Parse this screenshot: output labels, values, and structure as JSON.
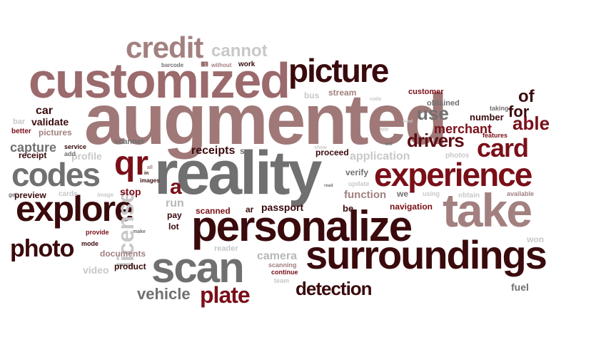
{
  "palette": {
    "maroon": "#5e0b12",
    "brown": "#3a0a0c",
    "dark": "#2a0408",
    "red": "#7a0f18",
    "rose": "#9b6a6c",
    "mauve": "#a38080",
    "gray": "#707070",
    "lightgray": "#b8b8b8",
    "silver": "#c8c8c8"
  },
  "words": [
    {
      "text": "augmented",
      "color": "#a07878"
    },
    {
      "text": "reality",
      "color": "#707070"
    },
    {
      "text": "customized",
      "color": "#9b6a6c"
    },
    {
      "text": "personalize",
      "color": "#3a0a0c"
    },
    {
      "text": "surroundings",
      "color": "#3a0a0c"
    },
    {
      "text": "take",
      "color": "#a38080"
    },
    {
      "text": "scan",
      "color": "#707070"
    },
    {
      "text": "explore",
      "color": "#3a0a0c"
    },
    {
      "text": "experience",
      "color": "#7a0f18"
    },
    {
      "text": "picture",
      "color": "#3a0a0c"
    },
    {
      "text": "credit",
      "color": "#a38080"
    },
    {
      "text": "codes",
      "color": "#707070"
    },
    {
      "text": "qr",
      "color": "#7a0f18"
    },
    {
      "text": "card",
      "color": "#7a0f18"
    },
    {
      "text": "photo",
      "color": "#3a0a0c"
    },
    {
      "text": "license",
      "color": "#c8c8c8"
    },
    {
      "text": "plate",
      "color": "#7a0f18"
    },
    {
      "text": "vehicle",
      "color": "#707070"
    },
    {
      "text": "detection",
      "color": "#3a0a0c"
    },
    {
      "text": "drivers",
      "color": "#5e0b12"
    },
    {
      "text": "able",
      "color": "#7a0f18"
    },
    {
      "text": "use",
      "color": "#707070"
    },
    {
      "text": "cannot",
      "color": "#c8c8c8"
    },
    {
      "text": "merchant",
      "color": "#7a0f18"
    },
    {
      "text": "of",
      "color": "#3a0a0c"
    },
    {
      "text": "for",
      "color": "#3a0a0c"
    },
    {
      "text": "a",
      "color": "#7a0f18"
    },
    {
      "text": "capture",
      "color": "#707070"
    },
    {
      "text": "receipts",
      "color": "#3a0a0c"
    },
    {
      "text": "passport",
      "color": "#3a0a0c"
    },
    {
      "text": "application",
      "color": "#c8c8c8"
    },
    {
      "text": "function",
      "color": "#a38080"
    },
    {
      "text": "navigation",
      "color": "#7a0f18"
    },
    {
      "text": "camera",
      "color": "#b8b8b8"
    },
    {
      "text": "video",
      "color": "#c8c8c8"
    },
    {
      "text": "car",
      "color": "#3a0a0c"
    },
    {
      "text": "validate",
      "color": "#3a0a0c"
    },
    {
      "text": "pictures",
      "color": "#a38080"
    },
    {
      "text": "receipt",
      "color": "#3a0a0c"
    },
    {
      "text": "profile",
      "color": "#c8c8c8"
    },
    {
      "text": "preview",
      "color": "#3a0a0c"
    },
    {
      "text": "stop",
      "color": "#7a0f18"
    },
    {
      "text": "run",
      "color": "#b8b8b8"
    },
    {
      "text": "pay",
      "color": "#3a0a0c"
    },
    {
      "text": "lot",
      "color": "#3a0a0c"
    },
    {
      "text": "scanned",
      "color": "#7a0f18"
    },
    {
      "text": "ar",
      "color": "#3a0a0c"
    },
    {
      "text": "be",
      "color": "#3a0a0c"
    },
    {
      "text": "we",
      "color": "#707070"
    },
    {
      "text": "obtained",
      "color": "#707070"
    },
    {
      "text": "number",
      "color": "#3a0a0c"
    },
    {
      "text": "customer",
      "color": "#7a0f18"
    },
    {
      "text": "stream",
      "color": "#a38080"
    },
    {
      "text": "bus",
      "color": "#c8c8c8"
    },
    {
      "text": "proceed",
      "color": "#3a0a0c"
    },
    {
      "text": "verify",
      "color": "#707070"
    },
    {
      "text": "documents",
      "color": "#a38080"
    },
    {
      "text": "product",
      "color": "#3a0a0c"
    },
    {
      "text": "reader",
      "color": "#c8c8c8"
    },
    {
      "text": "scanning",
      "color": "#a38080"
    },
    {
      "text": "continue",
      "color": "#7a0f18"
    },
    {
      "text": "team",
      "color": "#c8c8c8"
    },
    {
      "text": "fuel",
      "color": "#707070"
    },
    {
      "text": "won",
      "color": "#c8c8c8"
    },
    {
      "text": "photos",
      "color": "#c8c8c8"
    },
    {
      "text": "features",
      "color": "#7a0f18"
    },
    {
      "text": "taking",
      "color": "#707070"
    },
    {
      "text": "obtain",
      "color": "#c8c8c8"
    },
    {
      "text": "available",
      "color": "#a38080"
    },
    {
      "text": "using",
      "color": "#c8c8c8"
    },
    {
      "text": "scanner",
      "color": "#707070"
    },
    {
      "text": "so",
      "color": "#707070"
    },
    {
      "text": "service",
      "color": "#3a0a0c"
    },
    {
      "text": "add",
      "color": "#707070"
    },
    {
      "text": "better",
      "color": "#7a0f18"
    },
    {
      "text": "bar",
      "color": "#c8c8c8"
    },
    {
      "text": "get",
      "color": "#707070"
    },
    {
      "text": "cards",
      "color": "#c8c8c8"
    },
    {
      "text": "image",
      "color": "#c8c8c8"
    },
    {
      "text": "images",
      "color": "#3a0a0c"
    },
    {
      "text": "provide",
      "color": "#7a0f18"
    },
    {
      "text": "mode",
      "color": "#3a0a0c"
    },
    {
      "text": "make",
      "color": "#707070"
    },
    {
      "text": "barcode",
      "color": "#707070"
    },
    {
      "text": "without",
      "color": "#a38080"
    },
    {
      "text": "work",
      "color": "#3a0a0c"
    },
    {
      "text": "show",
      "color": "#c8c8c8"
    },
    {
      "text": "update",
      "color": "#c8c8c8"
    },
    {
      "text": "code",
      "color": "#c8c8c8"
    },
    {
      "text": "read",
      "color": "#707070"
    },
    {
      "text": "send",
      "color": "#c8c8c8"
    },
    {
      "text": "app",
      "color": "#c8c8c8"
    },
    {
      "text": "all",
      "color": "#a38080"
    },
    {
      "text": "in",
      "color": "#3a0a0c"
    },
    {
      "text": "will",
      "color": "#707070"
    },
    {
      "text": "1",
      "color": "#c8c8c8"
    }
  ]
}
